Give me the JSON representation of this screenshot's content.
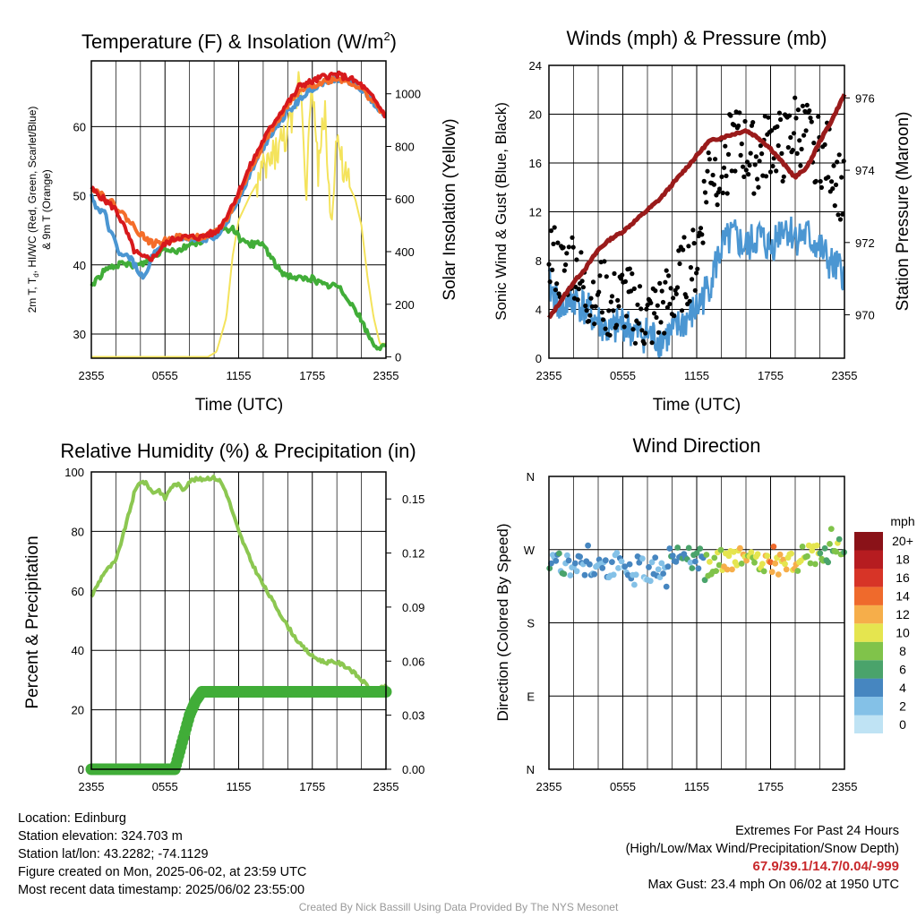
{
  "panels": {
    "temp": {
      "title": "Temperature (F) & Insolation (W/m",
      "title_sup": "2",
      "title_end": ")",
      "ylabel_left_1": "2m T, T",
      "ylabel_left_sub": "d",
      "ylabel_left_2": ", HI/WC (Red, Green, Scarlet/Blue)",
      "ylabel_left_3": "& 9m T (Orange)",
      "ylabel_right": "Solar Insolation (Yellow)",
      "xlabel": "Time (UTC)"
    },
    "wind": {
      "title": "Winds (mph) & Pressure (mb)",
      "ylabel_left": "Sonic Wind & Gust (Blue, Black)",
      "ylabel_right": "Station Pressure (Maroon)",
      "xlabel": "Time (UTC)"
    },
    "rh": {
      "title": "Relative Humidity (%) & Precipitation (in)",
      "ylabel_left": "Percent & Precipitation"
    },
    "dir": {
      "title": "Wind Direction",
      "ylabel_left": "Direction (Colored By Speed)",
      "colorbar_title": "mph"
    }
  },
  "chart_data": [
    {
      "type": "line",
      "panel": "temp",
      "x_ticks": [
        "2355",
        "0555",
        "1155",
        "1755",
        "2355"
      ],
      "x_range_hours": [
        0,
        24
      ],
      "ylim_left": [
        26.5,
        69.5
      ],
      "yticks_left": [
        30,
        40,
        50,
        60
      ],
      "ylim_right": [
        -5,
        1125
      ],
      "yticks_right": [
        0,
        200,
        400,
        600,
        800,
        1000
      ],
      "series": [
        {
          "color": "#d7191c",
          "x": [
            0,
            1,
            2,
            2.8,
            3.5,
            4.2,
            5,
            6,
            7,
            8,
            9,
            9.5,
            10,
            10.5,
            11,
            12,
            13,
            14,
            15,
            16,
            16.5,
            17,
            18,
            19,
            20,
            21,
            22,
            23,
            24
          ],
          "values": [
            51,
            49.5,
            48,
            45,
            42,
            41,
            41,
            43,
            44,
            44,
            44,
            44.5,
            44.5,
            45.5,
            47,
            50.5,
            54.5,
            58,
            61,
            63.5,
            64.5,
            66,
            66.5,
            67.3,
            67.5,
            67,
            66,
            64,
            61.5
          ]
        },
        {
          "color": "#f46d2a",
          "x": [
            0,
            1,
            2,
            3,
            4,
            5,
            6,
            7,
            8,
            9,
            10,
            11,
            12,
            13,
            14,
            15,
            16,
            17,
            18,
            19,
            20,
            21,
            22,
            23,
            24
          ],
          "values": [
            51.3,
            50,
            48.5,
            46.5,
            44.5,
            43,
            43.5,
            44,
            44,
            44,
            44.5,
            46.5,
            50,
            54,
            57.5,
            60.5,
            63,
            65,
            66,
            66.5,
            67,
            66.5,
            65.5,
            63.5,
            61.5
          ]
        },
        {
          "color": "#4b96d2",
          "x": [
            0,
            0.5,
            1,
            1.5,
            2,
            2.5,
            3,
            3.5,
            4,
            4.5,
            5,
            5.5,
            6,
            7,
            8,
            9,
            10,
            11,
            12,
            13,
            14,
            15,
            16,
            17,
            18,
            19,
            20,
            21,
            22,
            23,
            24
          ],
          "values": [
            50,
            48,
            48,
            45,
            43,
            41,
            41.5,
            40,
            38.5,
            38.5,
            41.5,
            42,
            43,
            44,
            43.5,
            43.5,
            44,
            46,
            49.5,
            53.5,
            57,
            60,
            62,
            64,
            65.5,
            66.5,
            67,
            66.5,
            65.5,
            63.5,
            61.5
          ]
        },
        {
          "color": "#41ad38",
          "x": [
            0,
            1,
            2,
            3,
            4,
            5,
            6,
            7,
            8,
            9,
            10,
            11,
            11.5,
            12,
            12.5,
            13,
            14,
            15,
            15.5,
            16,
            17,
            18,
            19,
            20,
            21,
            22,
            22.5,
            23,
            23.5,
            24
          ],
          "values": [
            37,
            39,
            40,
            40,
            40,
            41,
            42.5,
            42,
            43,
            43.5,
            44.5,
            45,
            45.5,
            44,
            43,
            43,
            43,
            40,
            39,
            38.5,
            38,
            38,
            37,
            37,
            35,
            32,
            30,
            28.5,
            28,
            28
          ]
        },
        {
          "color": "#f4e35c",
          "x": [
            0,
            2,
            4,
            6,
            8,
            9.5,
            10.2,
            11,
            11.5,
            12,
            13,
            14,
            15,
            16,
            16.5,
            17,
            17.5,
            18,
            18.5,
            19,
            19.5,
            20,
            20.5,
            21,
            21.5,
            22,
            22.5,
            23,
            23.5,
            24
          ],
          "values": [
            0,
            0,
            0,
            0,
            0,
            0,
            20,
            150,
            380,
            520,
            620,
            700,
            780,
            850,
            900,
            1100,
            650,
            1050,
            700,
            950,
            500,
            850,
            700,
            650,
            600,
            500,
            300,
            150,
            50,
            50
          ]
        }
      ]
    },
    {
      "type": "line",
      "panel": "wind",
      "x_ticks": [
        "2355",
        "0555",
        "1155",
        "1755",
        "2355"
      ],
      "x_range_hours": [
        0,
        24
      ],
      "ylim_left": [
        0,
        24
      ],
      "yticks_left": [
        0,
        4,
        8,
        12,
        16,
        20,
        24
      ],
      "ylim_right": [
        968.8,
        976.9
      ],
      "yticks_right": [
        970,
        972,
        974,
        976
      ],
      "series": [
        {
          "color": "#9a1b1b",
          "x": [
            0,
            1,
            2,
            3,
            4,
            5,
            6,
            7,
            8,
            9,
            10,
            11,
            12,
            13,
            14,
            15,
            16,
            17,
            18,
            19,
            20,
            21,
            22,
            23,
            24
          ],
          "values": [
            969.9,
            970.4,
            970.9,
            971.3,
            971.8,
            972.1,
            972.3,
            972.6,
            972.9,
            973.2,
            973.6,
            974.0,
            974.4,
            974.8,
            974.9,
            975.0,
            975.1,
            974.9,
            974.6,
            974.2,
            973.8,
            974.1,
            974.8,
            975.4,
            976.1
          ]
        },
        {
          "color": "#4b96d2",
          "x": [
            0,
            1,
            2,
            3,
            4,
            5,
            6,
            7,
            8,
            9,
            10,
            11,
            12,
            13,
            14,
            15,
            16,
            17,
            18,
            19,
            20,
            21,
            22,
            23,
            24
          ],
          "values": [
            6,
            4,
            5,
            4,
            3,
            2,
            3,
            2,
            2,
            1.5,
            2,
            3,
            4,
            6,
            9,
            10,
            9,
            10,
            9,
            11,
            10,
            10,
            9,
            7.5,
            7
          ]
        },
        {
          "color": "#000000",
          "x": [
            0,
            1,
            2,
            3,
            4,
            5,
            6,
            7,
            8,
            9,
            10,
            11,
            12,
            13,
            14,
            15,
            16,
            17,
            18,
            19,
            20,
            21,
            22,
            23,
            24
          ],
          "values": [
            9,
            7,
            8,
            5,
            6,
            4,
            5,
            4,
            3,
            4,
            5,
            7,
            8,
            16,
            15,
            18,
            17,
            16,
            18,
            17,
            19,
            18,
            17,
            16,
            13
          ]
        }
      ]
    },
    {
      "type": "line",
      "panel": "rh",
      "x_ticks": [
        "2355",
        "0555",
        "1155",
        "1755",
        "2355"
      ],
      "x_range_hours": [
        0,
        24
      ],
      "ylim_left": [
        0,
        100
      ],
      "yticks_left": [
        0,
        20,
        40,
        60,
        80,
        100
      ],
      "ylim_right": [
        0,
        0.165
      ],
      "yticks_right": [
        "0.00",
        "0.03",
        "0.06",
        "0.09",
        "0.12",
        "0.15"
      ],
      "series": [
        {
          "color": "#8cc751",
          "axis": "left",
          "x": [
            0,
            0.5,
            1,
            2,
            3,
            3.5,
            4,
            4.5,
            5,
            5.5,
            6,
            6.5,
            7,
            7.5,
            8,
            8.5,
            9,
            9.5,
            10,
            10.5,
            11,
            12,
            13,
            14,
            15,
            16,
            17,
            18,
            19,
            20,
            21,
            22,
            23,
            24
          ],
          "values": [
            58,
            62,
            66,
            70,
            85,
            93,
            97,
            96,
            93,
            94,
            91,
            95,
            96,
            94,
            97,
            97.5,
            97.5,
            98,
            98,
            97,
            93,
            80,
            70,
            62,
            55,
            48,
            42,
            38,
            36,
            36,
            34,
            30,
            26,
            28
          ]
        },
        {
          "color": "#41ad38",
          "axis": "right",
          "x": [
            0,
            6.8,
            7.2,
            7.6,
            8,
            8.5,
            9,
            24
          ],
          "values": [
            0,
            0,
            0.01,
            0.02,
            0.03,
            0.038,
            0.043,
            0.043
          ]
        }
      ]
    },
    {
      "type": "scatter",
      "panel": "dir",
      "x_ticks": [
        "2355",
        "0555",
        "1155",
        "1755",
        "2355"
      ],
      "x_range_hours": [
        0,
        24
      ],
      "yticks": [
        "N",
        "E",
        "S",
        "W",
        "N"
      ],
      "ylim_degrees": [
        0,
        360
      ],
      "colorbar_levels": [
        "0",
        "2",
        "4",
        "6",
        "8",
        "10",
        "12",
        "14",
        "16",
        "18",
        "20+"
      ],
      "colorbar_colors": [
        "#bfe3f4",
        "#84c1e7",
        "#4686c0",
        "#4aa36b",
        "#80c34a",
        "#e5e54f",
        "#f6ae4a",
        "#ef6a2c",
        "#d73427",
        "#b61c20",
        "#8a1218"
      ],
      "series": [
        {
          "x": [
            0,
            1,
            2,
            3,
            4,
            5,
            6,
            7,
            8,
            9,
            10,
            11,
            12,
            13,
            14,
            15,
            16,
            17,
            18,
            19,
            20,
            21,
            22,
            23,
            24
          ],
          "values": [
            255,
            252,
            250,
            253,
            248,
            250,
            252,
            248,
            245,
            250,
            262,
            265,
            258,
            252,
            255,
            260,
            258,
            255,
            250,
            252,
            258,
            262,
            265,
            270,
            272
          ],
          "speeds": [
            4,
            4,
            3,
            4,
            3,
            3,
            3,
            2,
            2,
            3,
            4,
            4,
            5,
            8,
            10,
            11,
            10,
            9,
            12,
            10,
            10,
            9,
            8,
            8,
            7
          ]
        }
      ]
    }
  ],
  "footer": {
    "location": "Location: Edinburg",
    "elevation": "Station elevation: 324.703 m",
    "latlon": "Station lat/lon: 43.2282; -74.1129",
    "created": "Figure created on Mon, 2025-06-02, at 23:59 UTC",
    "recent": "Most recent data timestamp: 2025/06/02 23:55:00",
    "extremes_title": "Extremes For Past 24 Hours",
    "extremes_legend": "(High/Low/Max Wind/Precipitation/Snow Depth)",
    "extremes_values": "67.9/39.1/14.7/0.04/-999",
    "max_gust": "Max Gust: 23.4 mph On 06/02 at 1950 UTC",
    "credit": "Created By Nick Bassill Using Data Provided By The NYS Mesonet"
  }
}
